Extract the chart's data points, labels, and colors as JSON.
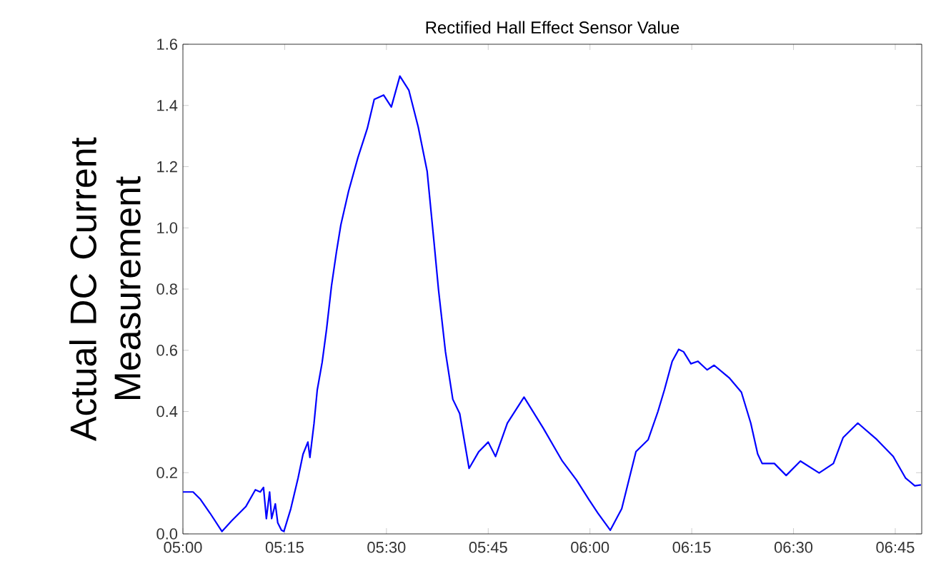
{
  "chart_data": {
    "type": "line",
    "title": "Rectified Hall Effect Sensor Value",
    "ylabel": "Actual DC Current Measurement",
    "xlim": [
      5.0,
      6.815
    ],
    "ylim": [
      0,
      1.6
    ],
    "xticks": [
      {
        "value": 5.0,
        "label": "05:00"
      },
      {
        "value": 5.25,
        "label": "05:15"
      },
      {
        "value": 5.5,
        "label": "05:30"
      },
      {
        "value": 5.75,
        "label": "05:45"
      },
      {
        "value": 6.0,
        "label": "06:00"
      },
      {
        "value": 6.25,
        "label": "06:15"
      },
      {
        "value": 6.5,
        "label": "06:30"
      },
      {
        "value": 6.75,
        "label": "06:45"
      }
    ],
    "yticks": [
      {
        "value": 0,
        "label": "0.0"
      },
      {
        "value": 0.2,
        "label": "0.2"
      },
      {
        "value": 0.4,
        "label": "0.4"
      },
      {
        "value": 0.6,
        "label": "0.6"
      },
      {
        "value": 0.8,
        "label": "0.8"
      },
      {
        "value": 1.0,
        "label": "1.0"
      },
      {
        "value": 1.2,
        "label": "1.2"
      },
      {
        "value": 1.4,
        "label": "1.4"
      },
      {
        "value": 1.6,
        "label": "1.6"
      }
    ],
    "grid": false,
    "marker": "none",
    "line_style": "solid",
    "series": [
      {
        "color": "#0000ff",
        "x": [
          5.0,
          5.025,
          5.043,
          5.067,
          5.096,
          5.12,
          5.155,
          5.178,
          5.19,
          5.198,
          5.205,
          5.213,
          5.218,
          5.227,
          5.233,
          5.242,
          5.248,
          5.265,
          5.283,
          5.295,
          5.307,
          5.312,
          5.322,
          5.33,
          5.342,
          5.353,
          5.365,
          5.377,
          5.388,
          5.407,
          5.43,
          5.453,
          5.47,
          5.493,
          5.512,
          5.533,
          5.555,
          5.578,
          5.6,
          5.617,
          5.628,
          5.645,
          5.663,
          5.68,
          5.703,
          5.727,
          5.75,
          5.768,
          5.797,
          5.838,
          5.885,
          5.932,
          5.967,
          5.997,
          6.02,
          6.05,
          6.078,
          6.113,
          6.143,
          6.167,
          6.183,
          6.202,
          6.218,
          6.23,
          6.248,
          6.265,
          6.288,
          6.305,
          6.342,
          6.372,
          6.395,
          6.412,
          6.423,
          6.453,
          6.482,
          6.517,
          6.563,
          6.598,
          6.622,
          6.658,
          6.705,
          6.745,
          6.775,
          6.798,
          6.813
        ],
        "values": [
          0.137,
          0.137,
          0.113,
          0.067,
          0.008,
          0.043,
          0.09,
          0.144,
          0.137,
          0.152,
          0.05,
          0.137,
          0.05,
          0.098,
          0.036,
          0.012,
          0.008,
          0.082,
          0.183,
          0.26,
          0.3,
          0.25,
          0.36,
          0.47,
          0.56,
          0.67,
          0.81,
          0.92,
          1.01,
          1.12,
          1.23,
          1.325,
          1.42,
          1.434,
          1.395,
          1.496,
          1.45,
          1.33,
          1.185,
          0.952,
          0.797,
          0.595,
          0.44,
          0.393,
          0.214,
          0.269,
          0.3,
          0.253,
          0.362,
          0.447,
          0.346,
          0.238,
          0.176,
          0.113,
          0.067,
          0.012,
          0.082,
          0.269,
          0.308,
          0.4,
          0.471,
          0.564,
          0.603,
          0.595,
          0.556,
          0.564,
          0.536,
          0.551,
          0.51,
          0.463,
          0.362,
          0.261,
          0.23,
          0.23,
          0.191,
          0.238,
          0.199,
          0.23,
          0.315,
          0.362,
          0.308,
          0.253,
          0.183,
          0.157,
          0.16
        ]
      }
    ]
  }
}
